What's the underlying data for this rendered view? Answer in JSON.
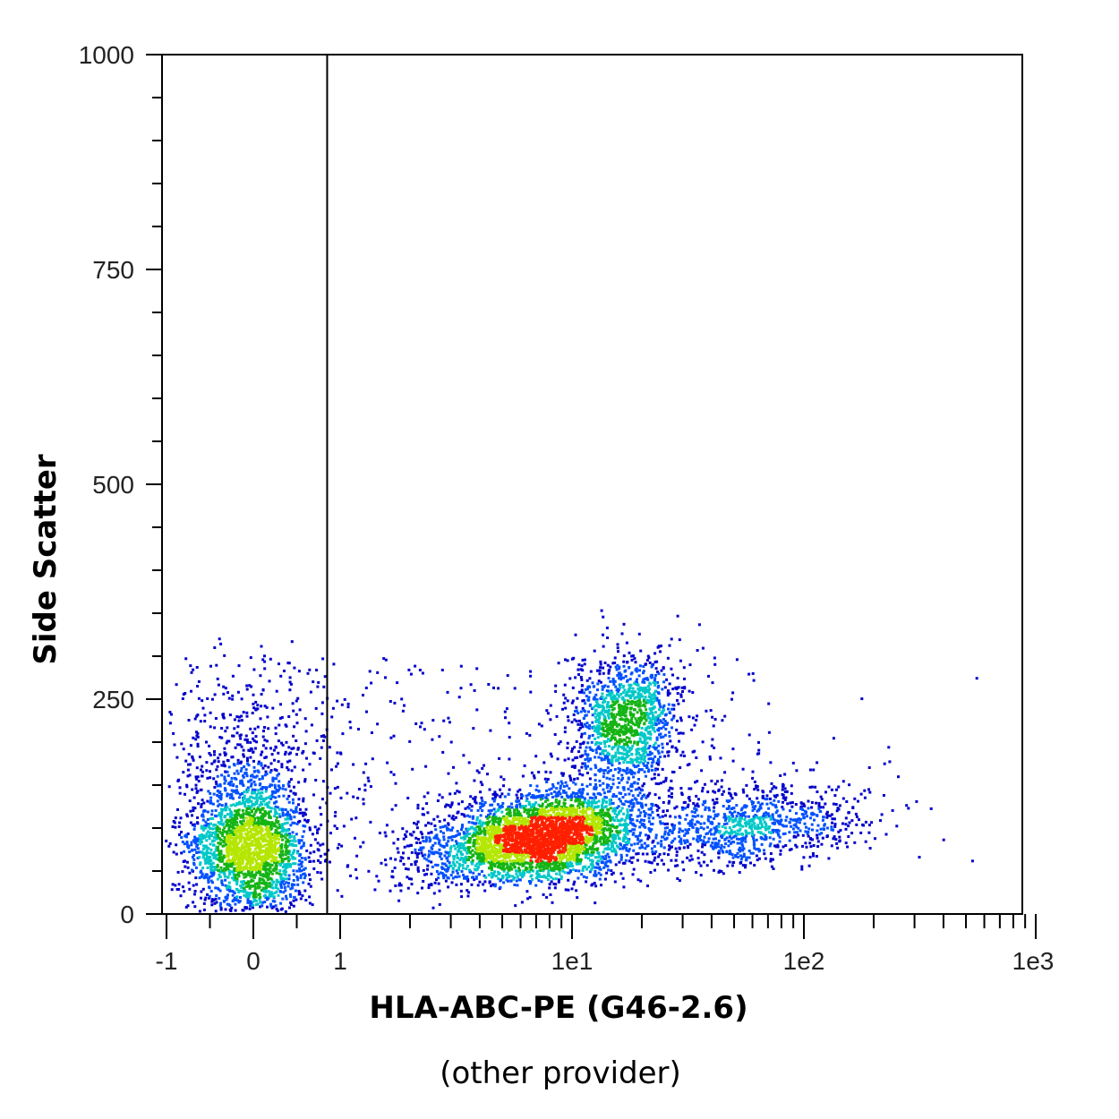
{
  "chart_data": {
    "type": "scatter",
    "title": "",
    "xlabel": "HLA-ABC-PE (G46-2.6)",
    "xlabel_sub": "(other provider)",
    "ylabel": "Side Scatter",
    "x_scale": "biexponential",
    "ylim": [
      0,
      1000
    ],
    "x_ticks": [
      "-1",
      "0",
      "1",
      "1e1",
      "1e2",
      "1e3"
    ],
    "y_ticks": [
      0,
      250,
      500,
      750,
      1000
    ],
    "gate": {
      "type": "vertical-line",
      "x": 0.85
    },
    "density_colors": [
      "#0000cc",
      "#0050ff",
      "#00c8c8",
      "#14b414",
      "#b4e600",
      "#ff2000"
    ],
    "populations": [
      {
        "label": "negative",
        "x_center": 0.0,
        "ssc_center": 80,
        "count": 2400
      },
      {
        "label": "main positive",
        "x_center": 9,
        "ssc_center": 95,
        "count": 3400
      },
      {
        "label": "high SSC positive",
        "x_center": 17,
        "ssc_center": 225,
        "count": 1300
      },
      {
        "label": "bright tail",
        "x_center": 70,
        "ssc_center": 100,
        "count": 900
      }
    ]
  }
}
